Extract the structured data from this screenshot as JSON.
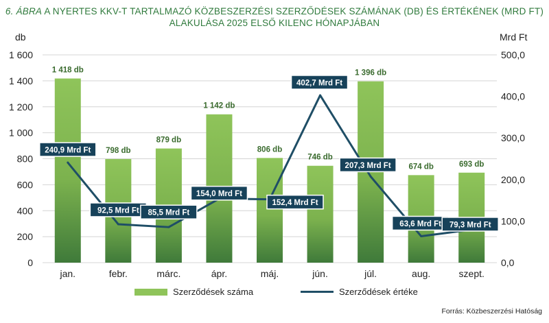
{
  "title": {
    "fig_label": "6. ÁBRA",
    "text": "A NYERTES KKV-T TARTALMAZÓ KÖZBESZERZÉSI SZERZŐDÉSEK SZÁMÁNAK (DB) ÉS ÉRTÉKÉNEK (MRD FT) ALAKULÁSA 2025 ELSŐ KILENC HÓNAPJÁBAN"
  },
  "source": "Forrás: Közbeszerzési Hatóság",
  "colors": {
    "title": "#2f7a3c",
    "bar_top": "#8fc45a",
    "bar_bottom": "#3f7a3a",
    "line": "#1f4e66",
    "label_box": "#17425a",
    "bar_label": "#3a6b2e",
    "grid": "#d4d4d4"
  },
  "chart_data": {
    "type": "bar+line",
    "categories": [
      "jan.",
      "febr.",
      "márc.",
      "ápr.",
      "máj.",
      "jún.",
      "júl.",
      "aug.",
      "szept."
    ],
    "series": [
      {
        "name": "Szerződések száma",
        "type": "bar",
        "axis": "left",
        "values": [
          1418,
          798,
          879,
          1142,
          806,
          746,
          1396,
          674,
          693
        ],
        "labels": [
          "1 418 db",
          "798 db",
          "879 db",
          "1 142 db",
          "806 db",
          "746 db",
          "1 396 db",
          "674 db",
          "693 db"
        ]
      },
      {
        "name": "Szerződések értéke",
        "type": "line",
        "axis": "right",
        "values": [
          240.9,
          92.5,
          85.5,
          154.0,
          152.4,
          402.7,
          207.3,
          63.6,
          79.3
        ],
        "labels": [
          "240,9 Mrd Ft",
          "92,5 Mrd Ft",
          "85,5 Mrd Ft",
          "154,0 Mrd Ft",
          "152,4 Mrd Ft",
          "402,7 Mrd Ft",
          "207,3 Mrd Ft",
          "63,6 Mrd Ft",
          "79,3 Mrd Ft"
        ]
      }
    ],
    "y_left": {
      "label": "db",
      "ylim": [
        0,
        1600
      ],
      "ticks": [
        0,
        200,
        400,
        600,
        800,
        1000,
        1200,
        1400,
        1600
      ],
      "tick_labels": [
        "0",
        "200",
        "400",
        "600",
        "800",
        "1 000",
        "1 200",
        "1 400",
        "1 600"
      ]
    },
    "y_right": {
      "label": "Mrd Ft",
      "ylim": [
        0,
        500
      ],
      "ticks": [
        0,
        100,
        200,
        300,
        400,
        500
      ],
      "tick_labels": [
        "0,0",
        "100,0",
        "200,0",
        "300,0",
        "400,0",
        "500,0"
      ]
    },
    "grid": true,
    "legend_position": "bottom"
  }
}
